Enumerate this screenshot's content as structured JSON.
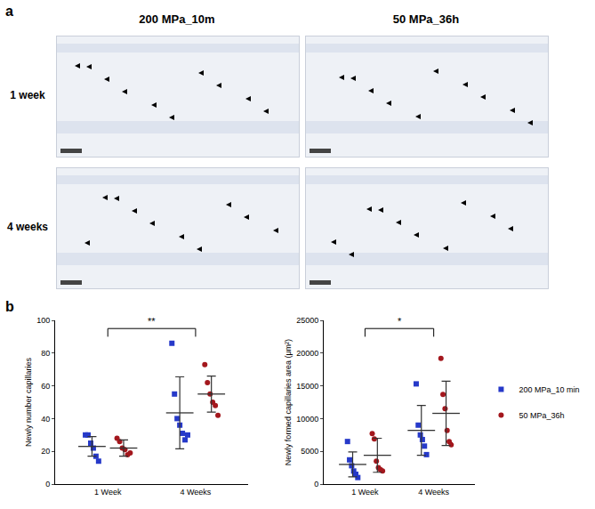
{
  "panel_a": {
    "label": "a",
    "columns": [
      "200 MPa_10m",
      "50 MPa_36h"
    ],
    "rows": [
      "1 week",
      "4 weeks"
    ]
  },
  "panel_b": {
    "label": "b"
  },
  "chart_data": [
    {
      "type": "scatter",
      "y_label": "Newly number capillaries",
      "categories": [
        "1 Week",
        "4 Weeks"
      ],
      "ylim": [
        0,
        100
      ],
      "yticks": [
        0,
        20,
        40,
        60,
        80,
        100
      ],
      "legend": "right",
      "series": [
        {
          "name": "200 MPa_10 min",
          "color": "#2639c9",
          "marker": "square",
          "values": [
            [
              30,
              30,
              25,
              22,
              17,
              14
            ],
            [
              86,
              55,
              40,
              36,
              31,
              27,
              30
            ]
          ],
          "mean": [
            23,
            43.5
          ],
          "sd": [
            6,
            22
          ]
        },
        {
          "name": "50 MPa_36h",
          "color": "#a3171d",
          "marker": "circle",
          "values": [
            [
              28,
              26,
              22,
              21,
              18,
              19
            ],
            [
              73,
              62,
              55,
              50,
              48,
              42
            ]
          ],
          "mean": [
            22,
            55
          ],
          "sd": [
            5,
            11
          ]
        }
      ],
      "significance": [
        {
          "from": "1 Week",
          "to": "4 Weeks",
          "label": "**"
        }
      ]
    },
    {
      "type": "scatter",
      "y_label": "Newly formed capillaries area (μm²)",
      "categories": [
        "1 Week",
        "4 Weeks"
      ],
      "ylim": [
        0,
        25000
      ],
      "yticks": [
        0,
        5000,
        10000,
        15000,
        20000,
        25000
      ],
      "legend": "right",
      "series": [
        {
          "name": "200 MPa_10 min",
          "color": "#2639c9",
          "marker": "square",
          "values": [
            [
              6500,
              3700,
              2800,
              2000,
              1500,
              1000
            ],
            [
              15300,
              9000,
              7500,
              6800,
              5800,
              4500
            ]
          ],
          "mean": [
            3000,
            8200
          ],
          "sd": [
            1900,
            3800
          ]
        },
        {
          "name": "50 MPa_36h",
          "color": "#a3171d",
          "marker": "circle",
          "values": [
            [
              7700,
              6900,
              3500,
              2500,
              2200,
              2000
            ],
            [
              19200,
              13700,
              11500,
              8200,
              6500,
              6000
            ]
          ],
          "mean": [
            4400,
            10800
          ],
          "sd": [
            2600,
            4900
          ]
        }
      ],
      "significance": [
        {
          "from": "1 Week",
          "to": "4 Weeks",
          "label": "*"
        }
      ]
    }
  ]
}
